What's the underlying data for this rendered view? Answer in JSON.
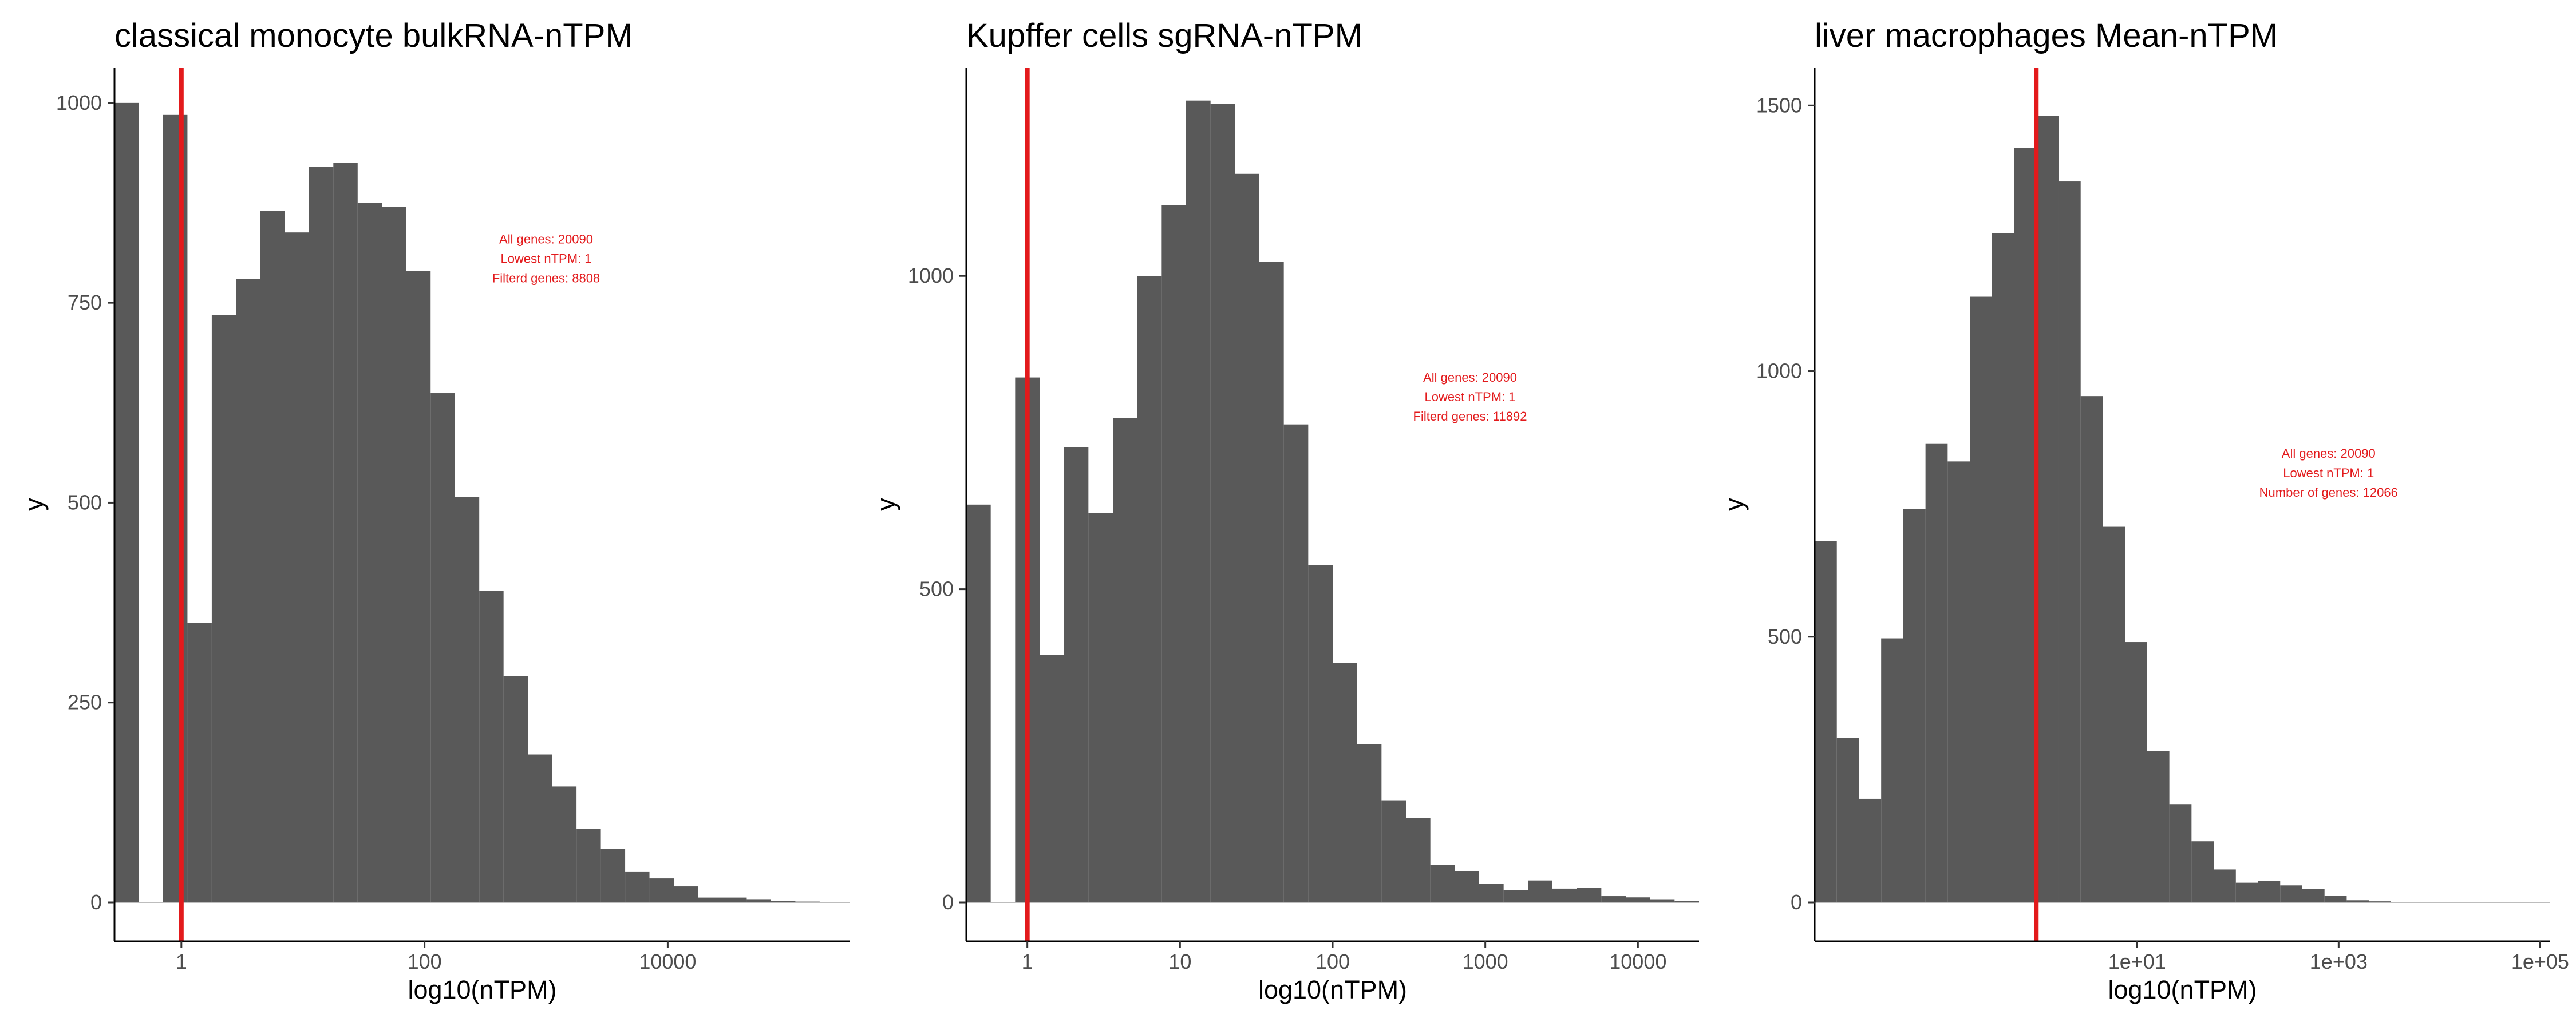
{
  "chart_data": [
    {
      "type": "bar",
      "subtype": "histogram",
      "title": "classical monocyte bulkRNA-nTPM",
      "xlabel": "log10(nTPM)",
      "ylabel": "y",
      "x_scale": "log10",
      "x_range_log10": [
        -0.55,
        5.5
      ],
      "xticks": [
        {
          "value": 0,
          "label": "1"
        },
        {
          "value": 2,
          "label": "100"
        },
        {
          "value": 4,
          "label": "10000"
        }
      ],
      "ylim": [
        0,
        1050
      ],
      "yticks": [
        0,
        250,
        500,
        750,
        1000
      ],
      "bin_width_log10": 0.2,
      "bins_log10_start": [
        -0.55,
        -0.35,
        -0.15,
        0.05,
        0.25,
        0.45,
        0.65,
        0.85,
        1.05,
        1.25,
        1.45,
        1.65,
        1.85,
        2.05,
        2.25,
        2.45,
        2.65,
        2.85,
        3.05,
        3.25,
        3.45,
        3.65,
        3.85,
        4.05,
        4.25,
        4.45,
        4.65,
        4.85,
        5.05
      ],
      "counts": [
        1000,
        0,
        985,
        350,
        735,
        780,
        865,
        838,
        920,
        925,
        875,
        870,
        790,
        637,
        507,
        390,
        283,
        185,
        145,
        92,
        67,
        38,
        30,
        20,
        6,
        6,
        4,
        2,
        1
      ],
      "threshold_nTPM": 1,
      "threshold_color": "#e31a1c",
      "bar_color": "#595959",
      "annotation": [
        "All genes: 20090",
        "Lowest nTPM: 1",
        "Filterd genes: 8808"
      ],
      "annotation_position": {
        "x_log10": 3.0,
        "y": 800
      }
    },
    {
      "type": "bar",
      "subtype": "histogram",
      "title": "Kupffer cells sgRNA-nTPM",
      "xlabel": "log10(nTPM)",
      "ylabel": "y",
      "x_scale": "log10",
      "x_range_log10": [
        -0.4,
        4.4
      ],
      "xticks": [
        {
          "value": 0,
          "label": "1"
        },
        {
          "value": 1,
          "label": "10"
        },
        {
          "value": 2,
          "label": "100"
        },
        {
          "value": 3,
          "label": "1000"
        },
        {
          "value": 4,
          "label": "10000"
        }
      ],
      "ylim": [
        0,
        1340
      ],
      "yticks": [
        0,
        500,
        1000
      ],
      "bin_width_log10": 0.16,
      "bins_log10_start": [
        -0.4,
        -0.24,
        -0.08,
        0.08,
        0.24,
        0.4,
        0.56,
        0.72,
        0.88,
        1.04,
        1.2,
        1.36,
        1.52,
        1.68,
        1.84,
        2.0,
        2.16,
        2.32,
        2.48,
        2.64,
        2.8,
        2.96,
        3.12,
        3.28,
        3.44,
        3.6,
        3.76,
        3.92,
        4.08,
        4.24
      ],
      "counts": [
        635,
        0,
        838,
        395,
        727,
        622,
        773,
        1000,
        1113,
        1280,
        1275,
        1163,
        1023,
        763,
        538,
        382,
        253,
        163,
        135,
        60,
        50,
        30,
        20,
        35,
        22,
        23,
        10,
        8,
        5,
        2
      ],
      "threshold_nTPM": 1,
      "threshold_color": "#e31a1c",
      "bar_color": "#595959",
      "annotation": [
        "All genes: 20090",
        "Lowest nTPM: 1",
        "Filterd genes: 11892"
      ],
      "annotation_position": {
        "x_log10": 2.9,
        "y": 800
      }
    },
    {
      "type": "bar",
      "subtype": "histogram",
      "title": "liver macrophages Mean-nTPM",
      "xlabel": "log10(nTPM)",
      "ylabel": "y",
      "x_scale": "log10",
      "x_range_log10": [
        -2.2,
        5.1
      ],
      "xticks": [
        {
          "value": 1,
          "label": "1e+01"
        },
        {
          "value": 3,
          "label": "1e+03"
        },
        {
          "value": 5,
          "label": "1e+05"
        }
      ],
      "ylim": [
        0,
        1580
      ],
      "yticks": [
        0,
        500,
        1000,
        1500
      ],
      "bin_width_log10": 0.22,
      "bins_log10_start": [
        -2.2,
        -1.98,
        -1.76,
        -1.54,
        -1.32,
        -1.1,
        -0.88,
        -0.66,
        -0.44,
        -0.22,
        0.0,
        0.22,
        0.44,
        0.66,
        0.88,
        1.1,
        1.32,
        1.54,
        1.76,
        1.98,
        2.2,
        2.42,
        2.64,
        2.86,
        3.08,
        3.3,
        3.52,
        3.74,
        3.96,
        4.18,
        4.4,
        4.62,
        4.84
      ],
      "counts": [
        680,
        310,
        195,
        497,
        740,
        863,
        830,
        1140,
        1260,
        1420,
        1480,
        1357,
        953,
        707,
        490,
        285,
        185,
        115,
        62,
        37,
        40,
        32,
        25,
        12,
        4,
        2,
        0,
        0,
        0,
        0,
        0,
        1,
        1
      ],
      "threshold_nTPM": 1,
      "threshold_color": "#e31a1c",
      "bar_color": "#595959",
      "annotation": [
        "All genes: 20090",
        "Lowest nTPM: 1",
        "Number of genes: 12066"
      ],
      "annotation_position": {
        "x_log10": 2.9,
        "y": 800
      }
    }
  ]
}
